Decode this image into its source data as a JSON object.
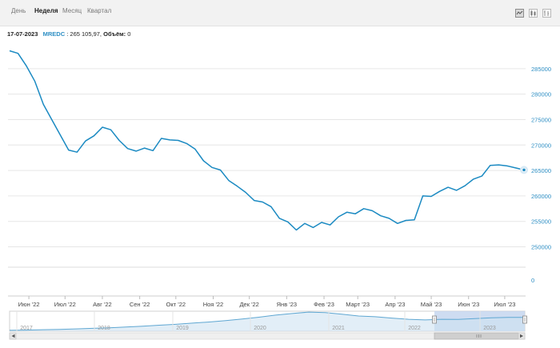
{
  "tabs": [
    {
      "label": "День",
      "active": false
    },
    {
      "label": "Неделя",
      "active": true
    },
    {
      "label": "Месяц",
      "active": false
    },
    {
      "label": "Квартал",
      "active": false
    }
  ],
  "tools": [
    "line-chart-icon",
    "candlestick-icon",
    "bar-chart-icon"
  ],
  "info": {
    "date": "17-07-2023",
    "symbol": "MREDC",
    "value": " : 265 105,97, ",
    "volume_label": "Объём:",
    "volume": " 0"
  },
  "colors": {
    "line": "#1b8ac2",
    "axis": "#2f8fc4",
    "navigator_fill": "#c6d6ee"
  },
  "chart_data": {
    "type": "line",
    "title": "",
    "xlabel": "",
    "ylabel": "",
    "ylim": [
      246000,
      290000
    ],
    "yticks": [
      "285000",
      "280000",
      "275000",
      "270000",
      "265000",
      "260000",
      "255000",
      "250000"
    ],
    "volume_tick": "0",
    "xticks": [
      "Июн '22",
      "Июл '22",
      "Авг '22",
      "Сен '22",
      "Окт '22",
      "Ноя '22",
      "Дек '22",
      "Янв '23",
      "Фев '23",
      "Март '23",
      "Апр '23",
      "Май '23",
      "Июн '23",
      "Июл '23"
    ],
    "series": [
      {
        "x": [
          "2022-05-16",
          "2022-05-23",
          "2022-05-30",
          "2022-06-06",
          "2022-06-13",
          "2022-06-20",
          "2022-06-27",
          "2022-07-04",
          "2022-07-11",
          "2022-07-18",
          "2022-07-25",
          "2022-08-01",
          "2022-08-08",
          "2022-08-15",
          "2022-08-22",
          "2022-08-29",
          "2022-09-05",
          "2022-09-12",
          "2022-09-19",
          "2022-09-26",
          "2022-10-03",
          "2022-10-10",
          "2022-10-17",
          "2022-10-24",
          "2022-10-31",
          "2022-11-07",
          "2022-11-14",
          "2022-11-21",
          "2022-11-28",
          "2022-12-05",
          "2022-12-12",
          "2022-12-19",
          "2022-12-26",
          "2023-01-02",
          "2023-01-09",
          "2023-01-16",
          "2023-01-23",
          "2023-01-30",
          "2023-02-06",
          "2023-02-13",
          "2023-02-20",
          "2023-02-27",
          "2023-03-06",
          "2023-03-13",
          "2023-03-20",
          "2023-03-27",
          "2023-04-03",
          "2023-04-10",
          "2023-04-17",
          "2023-04-24",
          "2023-05-01",
          "2023-05-08",
          "2023-05-15",
          "2023-05-22",
          "2023-05-29",
          "2023-06-05",
          "2023-06-12",
          "2023-06-19",
          "2023-06-26",
          "2023-07-03",
          "2023-07-10",
          "2023-07-17"
        ],
        "values": [
          288500,
          288000,
          285500,
          282500,
          278000,
          275000,
          272000,
          269000,
          268600,
          270800,
          271800,
          273500,
          273000,
          270900,
          269300,
          268800,
          269400,
          268900,
          271300,
          271000,
          270900,
          270300,
          269200,
          266900,
          265600,
          265100,
          263000,
          261900,
          260700,
          259100,
          258800,
          257900,
          255600,
          254900,
          253300,
          254600,
          253800,
          254800,
          254300,
          255900,
          256800,
          256500,
          257500,
          257100,
          256100,
          255600,
          254600,
          255200,
          255300,
          260000,
          259900,
          260900,
          261700,
          261100,
          262000,
          263300,
          263900,
          266000,
          266100,
          265900,
          265500,
          265106
        ]
      }
    ],
    "navigator": {
      "labels": [
        "2017",
        "2018",
        "2019",
        "2020",
        "2021",
        "2022",
        "2023"
      ],
      "values": [
        209000,
        210000,
        211500,
        213000,
        215000,
        217500,
        220000,
        223000,
        227000,
        231000,
        235000,
        240000,
        245000,
        251000,
        258000,
        266000,
        275000,
        282000,
        288000,
        286000,
        279000,
        271000,
        268000,
        262000,
        257000,
        254000,
        257000,
        256000,
        260000,
        263000,
        265000,
        265106
      ]
    }
  }
}
